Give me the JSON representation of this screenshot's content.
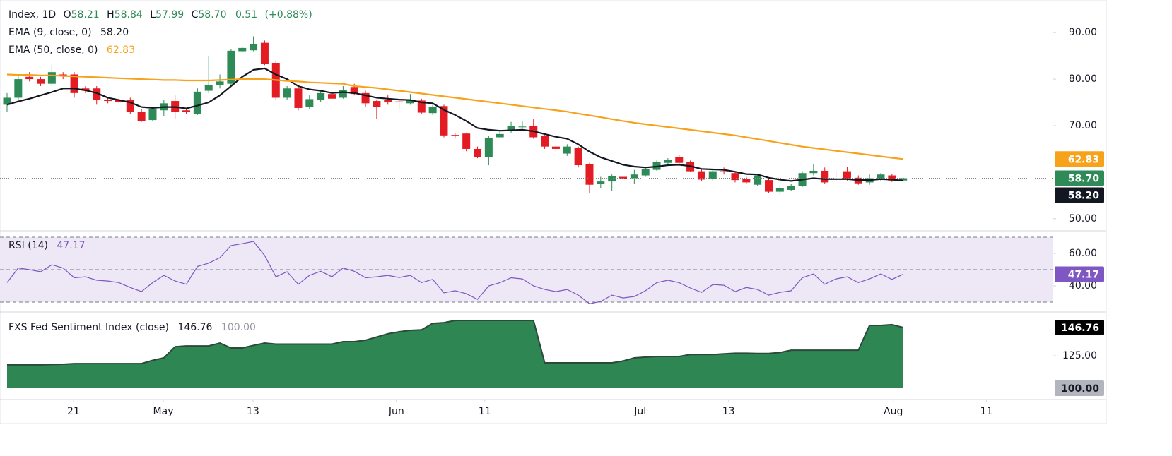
{
  "chart_data": [
    {
      "type": "candlestick",
      "title": "Index, 1D",
      "header": {
        "open_prefix": "O",
        "open": 58.21,
        "high_prefix": "H",
        "high": 58.84,
        "low_prefix": "L",
        "low": 57.99,
        "close_prefix": "C",
        "close": {
          "value": 58.7,
          "label": "58.70"
        },
        "change": 0.51,
        "change_pct": {
          "value": 0.88,
          "label": "(+0.88%)"
        },
        "color": "#2e8b57"
      },
      "up_color": "#2e8b57",
      "down_color": "#e31b23",
      "open": [
        74.5,
        76,
        80.5,
        80,
        79,
        81,
        81,
        78,
        78,
        75.5,
        75.5,
        75.5,
        73,
        71.2,
        73.3,
        75.3,
        73.3,
        72.5,
        77.5,
        78.8,
        79,
        86,
        86.2,
        87.8,
        83.5,
        76,
        78,
        74,
        75.5,
        76.8,
        76,
        78.3,
        77,
        75.3,
        75.5,
        75.2,
        74.8,
        75.4,
        72.7,
        74.2,
        68,
        68.3,
        65,
        63.3,
        67.5,
        69,
        69.8,
        70,
        67.8,
        65.5,
        64,
        65.2,
        61.7,
        57.5,
        58,
        59,
        58.7,
        59.3,
        60.5,
        62,
        63.3,
        62.2,
        60.2,
        58.5,
        60.2,
        59.8,
        58.6,
        57.3,
        58.3,
        55.8,
        56.2,
        57,
        59.8,
        60.3,
        58.6,
        60.2,
        58.8,
        57.8,
        58.6,
        59.3,
        58.21
      ],
      "high": [
        77,
        81,
        81.5,
        80.5,
        83,
        81.5,
        81.5,
        78.5,
        78.5,
        76,
        76.5,
        76,
        73.5,
        74,
        75.5,
        76.5,
        73.5,
        78,
        85,
        81,
        86.5,
        87,
        89.2,
        88.3,
        84,
        78.5,
        78.5,
        76.5,
        77.5,
        77.5,
        78.5,
        79,
        77.5,
        75.5,
        76.5,
        75.5,
        76.8,
        75.8,
        74.5,
        74.5,
        68.5,
        68.5,
        65.5,
        67.8,
        68.8,
        70.8,
        71,
        71.5,
        68,
        66,
        66,
        65.5,
        62,
        59,
        59.5,
        59.3,
        60.5,
        61,
        62.5,
        63,
        63.8,
        62.5,
        60.7,
        60.6,
        61,
        60.2,
        59,
        59.6,
        58.6,
        57,
        57.5,
        60.2,
        61.7,
        61,
        60.3,
        61.2,
        59.3,
        59.5,
        59.8,
        59.6,
        58.84
      ],
      "low": [
        73,
        75.5,
        79.5,
        78.5,
        78.5,
        80,
        76,
        77,
        74.5,
        74.8,
        74.5,
        72.5,
        70.8,
        71,
        72,
        71.5,
        72.5,
        72.3,
        77,
        78,
        78.5,
        85.8,
        86,
        83,
        75.5,
        75.5,
        73.3,
        73.5,
        75,
        75.3,
        75.8,
        76.5,
        74,
        71.5,
        74.5,
        73.5,
        74.5,
        72.5,
        72.3,
        67.5,
        67.3,
        64.5,
        63,
        61.5,
        67.3,
        68.5,
        69.3,
        67.2,
        65,
        64.3,
        63.5,
        61,
        55.5,
        56.5,
        56,
        58,
        57.5,
        59,
        60.3,
        61.5,
        61.8,
        60,
        58,
        58.2,
        59.5,
        57.8,
        57.4,
        57,
        55.5,
        55.3,
        56,
        56.8,
        59.3,
        57.5,
        58,
        58.2,
        57.3,
        57.3,
        58.2,
        57.9,
        57.99
      ],
      "close": [
        76,
        80,
        80,
        79,
        81.5,
        80.8,
        77,
        77.5,
        75.5,
        75.3,
        75,
        73,
        71,
        73.5,
        74.8,
        73,
        73,
        77.3,
        78.8,
        79.5,
        86.1,
        86.7,
        87.6,
        83.3,
        76,
        78,
        73.8,
        75.7,
        77,
        75.8,
        77.7,
        76.8,
        74.8,
        74,
        75,
        75,
        75.4,
        72.8,
        74.1,
        67.9,
        67.8,
        65,
        63.3,
        67.3,
        68.2,
        70,
        69.8,
        67.5,
        65.5,
        65,
        65.5,
        61.5,
        57.3,
        58,
        59.2,
        58.5,
        59.5,
        60.6,
        62.2,
        62.7,
        62,
        60.2,
        58.4,
        60.2,
        60.1,
        58.3,
        57.8,
        59.3,
        55.8,
        56.6,
        57,
        59.8,
        60.3,
        57.8,
        58.4,
        58.5,
        57.6,
        58.7,
        59.5,
        58.2,
        58.7
      ],
      "series": [
        {
          "name": "EMA (9, close, 0)",
          "color": "#131722",
          "last": {
            "value": 58.2,
            "label": "58.20"
          },
          "values": [
            74.5,
            75.2,
            75.8,
            76.5,
            77.2,
            78,
            78,
            77.6,
            77,
            76,
            75.5,
            75,
            74,
            73.8,
            74,
            74,
            73.7,
            74.3,
            75,
            76.5,
            78.5,
            80.5,
            82,
            82.3,
            81,
            80,
            78.5,
            77.8,
            77.5,
            77,
            77.2,
            77,
            76.5,
            76,
            75.8,
            75.6,
            75.5,
            75,
            74.8,
            73.4,
            72.3,
            71,
            69.5,
            69.1,
            68.9,
            69,
            69.1,
            68.8,
            68.2,
            67.6,
            67.2,
            66,
            64.4,
            63.2,
            62.4,
            61.6,
            61.2,
            61,
            61.2,
            61.5,
            61.6,
            61.3,
            60.7,
            60.6,
            60.5,
            60.1,
            59.6,
            59.5,
            58.8,
            58.4,
            58.1,
            58.4,
            58.7,
            58.5,
            58.5,
            58.5,
            58.3,
            58.3,
            58.5,
            58.4,
            58.2
          ]
        },
        {
          "name": "EMA (50, close, 0)",
          "color": "#f7a21b",
          "last": 62.83,
          "values": [
            81,
            80.9,
            80.9,
            80.8,
            80.8,
            80.7,
            80.6,
            80.5,
            80.4,
            80.3,
            80.2,
            80.1,
            80,
            79.9,
            79.8,
            79.8,
            79.7,
            79.7,
            79.7,
            79.8,
            79.9,
            80,
            80,
            80,
            79.8,
            79.6,
            79.5,
            79.3,
            79.2,
            79.1,
            79,
            78.5,
            78.3,
            78.1,
            77.8,
            77.5,
            77.2,
            76.9,
            76.6,
            76.3,
            76,
            75.7,
            75.4,
            75.1,
            74.8,
            74.5,
            74.2,
            73.9,
            73.6,
            73.3,
            73,
            72.6,
            72.2,
            71.8,
            71.4,
            71,
            70.6,
            70.3,
            70,
            69.7,
            69.4,
            69.1,
            68.8,
            68.5,
            68.2,
            67.9,
            67.5,
            67.1,
            66.7,
            66.3,
            65.9,
            65.5,
            65.2,
            64.9,
            64.6,
            64.3,
            64,
            63.7,
            63.4,
            63.1,
            62.83
          ]
        }
      ],
      "xlim": [
        -0.63,
        93.4
      ],
      "ylim": [
        47.7,
        97
      ],
      "yticks": [
        {
          "value": 50,
          "label": "50.00"
        },
        {
          "value": 70,
          "label": "70.00"
        },
        {
          "value": 80,
          "label": "80.00"
        },
        {
          "value": 90,
          "label": "90.00"
        }
      ]
    },
    {
      "type": "line",
      "name": "RSI (14)",
      "color": "#7e57c2",
      "last": 47.17,
      "levels": [
        70,
        50,
        30
      ],
      "band_color": "#ede7f6",
      "values": [
        42,
        51,
        50,
        48.7,
        53,
        51,
        45,
        45.6,
        43.5,
        43,
        42,
        39,
        36.5,
        42,
        46.5,
        43,
        41,
        52,
        54,
        57.4,
        64.8,
        66,
        67.4,
        58.7,
        45.6,
        48.7,
        41,
        46.5,
        49,
        45.6,
        51,
        49,
        45,
        45.6,
        46.5,
        45.2,
        46.5,
        42,
        44,
        35.7,
        37,
        35.2,
        31.7,
        40,
        42,
        45,
        44.3,
        40,
        37.8,
        36.5,
        37.8,
        34.3,
        29,
        30.4,
        34.3,
        32.6,
        33.5,
        37,
        42,
        43.5,
        42,
        38.7,
        36,
        40.8,
        40.4,
        36.5,
        39,
        37.8,
        34.3,
        36,
        37,
        45,
        47.4,
        41,
        44.3,
        45.6,
        42,
        44.3,
        47.4,
        44,
        47.17
      ],
      "xlim": [
        -0.63,
        93.4
      ],
      "ylim": [
        24.8,
        72.6
      ],
      "yticks": [
        {
          "value": 40,
          "label": "40.00"
        },
        {
          "value": 60,
          "label": "60.00"
        }
      ]
    },
    {
      "type": "area",
      "name": "FXS Fed Sentiment Index (close)",
      "color": "#2e8653",
      "line_color": "#2b4a39",
      "last": 146.76,
      "baseline": {
        "value": 100,
        "label": "100.00"
      },
      "values": [
        118,
        118,
        118,
        118,
        118.3,
        118.5,
        119,
        119,
        119,
        119,
        119,
        119,
        119,
        121.5,
        123.4,
        132,
        132.6,
        132.6,
        132.6,
        134.8,
        131,
        131,
        133,
        134.8,
        134,
        134,
        134,
        134,
        134,
        134,
        135.9,
        135.9,
        137,
        139.5,
        142,
        143.5,
        144.6,
        145,
        150,
        150.5,
        152.2,
        152.2,
        152.2,
        152.2,
        152.2,
        152.2,
        152.2,
        152.2,
        119.6,
        119.6,
        119.6,
        119.6,
        119.6,
        119.6,
        119.6,
        121,
        123.4,
        124,
        124.5,
        124.5,
        124.5,
        126,
        126,
        126,
        126.5,
        127,
        127,
        126.8,
        126.8,
        127.5,
        129.3,
        129.3,
        129.3,
        129.3,
        129.3,
        129.3,
        129.3,
        148.4,
        148.4,
        149,
        146.76
      ],
      "xlim": [
        -0.63,
        93.4
      ],
      "ylim": [
        97.3,
        157.1
      ],
      "yticks": [
        {
          "value": 125,
          "label": "125.00"
        }
      ],
      "xticks": [
        {
          "value": 5.93,
          "label": "21"
        },
        {
          "value": 13.95,
          "label": "May"
        },
        {
          "value": 21.96,
          "label": "13"
        },
        {
          "value": 34.76,
          "label": "Jun"
        },
        {
          "value": 42.65,
          "label": "11"
        },
        {
          "value": 56.53,
          "label": "Jul"
        },
        {
          "value": 64.42,
          "label": "13"
        },
        {
          "value": 79.12,
          "label": "Aug"
        },
        {
          "value": 87.44,
          "label": "11"
        }
      ]
    }
  ]
}
